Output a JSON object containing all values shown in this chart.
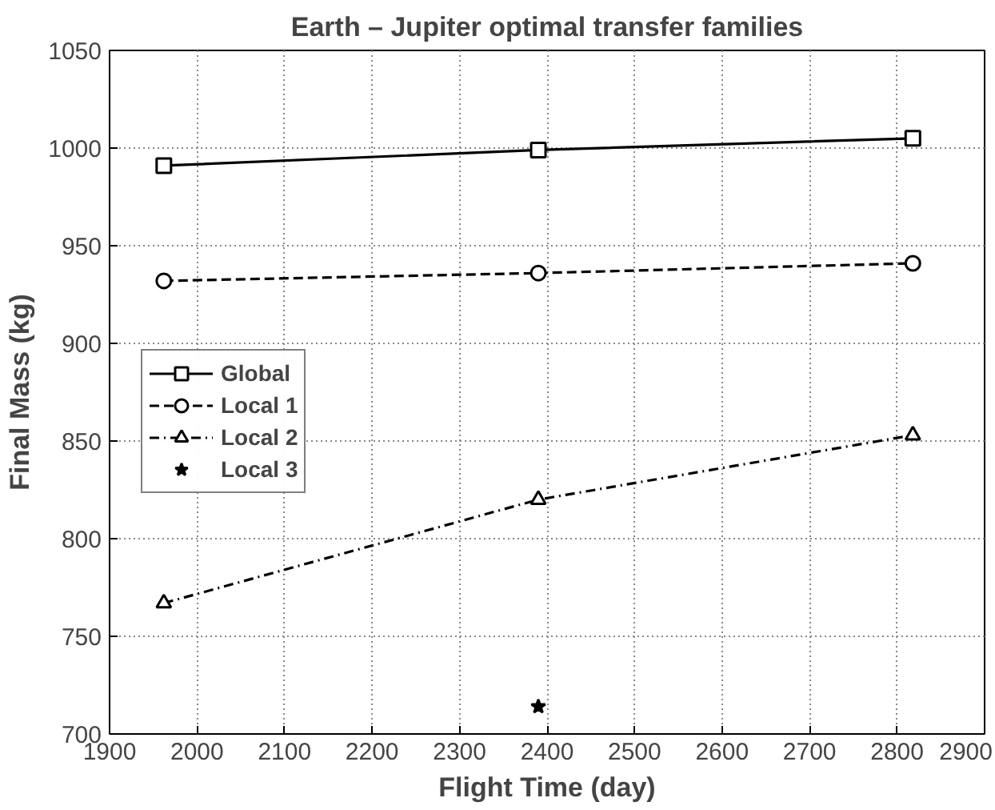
{
  "chart_data": {
    "type": "line",
    "title": "Earth – Jupiter optimal transfer families",
    "xlabel": "Flight Time (day)",
    "ylabel": "Final Mass (kg)",
    "xlim": [
      1900,
      2900
    ],
    "xticks": [
      1900,
      2000,
      2100,
      2200,
      2300,
      2400,
      2500,
      2600,
      2700,
      2800,
      2900
    ],
    "ylim": [
      700,
      1050
    ],
    "yticks": [
      700,
      750,
      800,
      850,
      900,
      950,
      1000,
      1050
    ],
    "grid": true,
    "legend": "left",
    "series": [
      {
        "name": "Global",
        "color": "#000000",
        "x": [
          1962,
          2390,
          2818
        ],
        "values": [
          991,
          999,
          1005
        ],
        "marker": "square",
        "line_style": "solid"
      },
      {
        "name": "Local 1",
        "color": "#000000",
        "x": [
          1962,
          2390,
          2818
        ],
        "values": [
          932,
          936,
          941
        ],
        "marker": "circle",
        "line_style": "dashed"
      },
      {
        "name": "Local 2",
        "color": "#000000",
        "x": [
          1962,
          2390,
          2818
        ],
        "values": [
          767,
          820,
          853
        ],
        "marker": "triangle",
        "line_style": "dashdot"
      },
      {
        "name": "Local 3",
        "color": "#000000",
        "x": [
          2390
        ],
        "values": [
          714
        ],
        "marker": "star",
        "line_style": "dotted"
      }
    ]
  }
}
